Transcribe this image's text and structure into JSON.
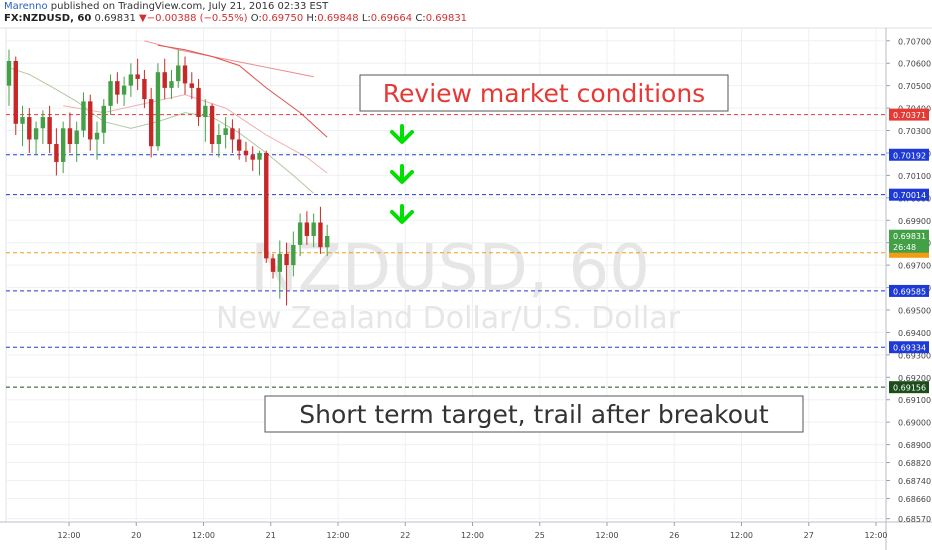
{
  "header": {
    "author": "Marenno",
    "published": " published on TradingView.com, July 21, 2016 02:33 EST",
    "symbol": "FX:NZDUSD, 60",
    "last": "0.69831",
    "change": "▼−0.00388 (−0.55%)",
    "o_label": "O:",
    "o": "0.69750",
    "h_label": "H:",
    "h": "0.69848",
    "l_label": "L:",
    "l": "0.69664",
    "c_label": "C:",
    "c": "0.69831"
  },
  "watermark": {
    "title": "NZDUSD, 60",
    "subtitle": "New Zealand Dollar/U.S. Dollar"
  },
  "annotations": [
    {
      "text": "Review market conditions",
      "color": "#e53935"
    },
    {
      "text": "Short term target, trail after breakout",
      "color": "#333333"
    }
  ],
  "colors": {
    "up": "#43a047",
    "down": "#c62828",
    "grid": "#eef0f3",
    "green_arrow": "#00e000"
  },
  "chart_data": {
    "type": "candlestick",
    "ylim": [
      0.68555,
      0.70757
    ],
    "y_ticks": [
      "0.70700",
      "0.70600",
      "0.70500",
      "0.70400",
      "0.70300",
      "0.70200",
      "0.70100",
      "0.70000",
      "0.69900",
      "0.69800",
      "0.69700",
      "0.69600",
      "0.69500",
      "0.69400",
      "0.69300",
      "0.69200",
      "0.69100",
      "0.69000",
      "0.68900",
      "0.68820",
      "0.68740",
      "0.68660",
      "0.68570"
    ],
    "x_ticks": [
      "12:00",
      "20",
      "12:00",
      "21",
      "12:00",
      "22",
      "12:00",
      "25",
      "12:00",
      "26",
      "12:00",
      "27",
      "12:00"
    ],
    "horizontal_levels": [
      {
        "label": "0.70371",
        "value": 0.70371,
        "color": "#e53935"
      },
      {
        "label": "0.70192",
        "value": 0.70192,
        "color": "#1e3ad6"
      },
      {
        "label": "0.70014",
        "value": 0.70014,
        "color": "#1e3ad6"
      },
      {
        "label": "0.69585",
        "value": 0.69585,
        "color": "#1e3ad6"
      },
      {
        "label": "0.69334",
        "value": 0.69334,
        "color": "#1e3ad6"
      },
      {
        "label": "0.69156",
        "value": 0.69156,
        "color": "#1b4d1b"
      },
      {
        "label": "",
        "value": 0.69755,
        "color": "#f39c12"
      }
    ],
    "price_labels": [
      {
        "label": "0.69831",
        "value": 0.69831,
        "color": "#43a047"
      },
      {
        "label": "26:48",
        "value": 0.69782,
        "color": "#43a047"
      }
    ],
    "candles": [
      [
        0.705,
        0.7066,
        0.7041,
        0.7061
      ],
      [
        0.7061,
        0.7063,
        0.7028,
        0.7033
      ],
      [
        0.7033,
        0.7041,
        0.7023,
        0.7036
      ],
      [
        0.7036,
        0.704,
        0.702,
        0.7026
      ],
      [
        0.7026,
        0.7034,
        0.7019,
        0.7031
      ],
      [
        0.7031,
        0.7039,
        0.7024,
        0.7036
      ],
      [
        0.7036,
        0.7041,
        0.702,
        0.7024
      ],
      [
        0.7024,
        0.7031,
        0.701,
        0.7016
      ],
      [
        0.7016,
        0.7034,
        0.7011,
        0.7031
      ],
      [
        0.7031,
        0.7038,
        0.702,
        0.7024
      ],
      [
        0.7024,
        0.7034,
        0.7016,
        0.703
      ],
      [
        0.703,
        0.7047,
        0.7027,
        0.7043
      ],
      [
        0.7043,
        0.7046,
        0.7021,
        0.7026
      ],
      [
        0.7026,
        0.7034,
        0.7017,
        0.7029
      ],
      [
        0.7029,
        0.7044,
        0.7024,
        0.7041
      ],
      [
        0.7041,
        0.7055,
        0.7037,
        0.7052
      ],
      [
        0.7052,
        0.7056,
        0.7042,
        0.7046
      ],
      [
        0.7046,
        0.7054,
        0.7041,
        0.705
      ],
      [
        0.705,
        0.706,
        0.7045,
        0.7055
      ],
      [
        0.7055,
        0.7062,
        0.7048,
        0.7053
      ],
      [
        0.7053,
        0.7057,
        0.704,
        0.7044
      ],
      [
        0.7044,
        0.7049,
        0.7018,
        0.7023
      ],
      [
        0.7023,
        0.706,
        0.7021,
        0.7056
      ],
      [
        0.7056,
        0.7062,
        0.7044,
        0.7049
      ],
      [
        0.7049,
        0.7057,
        0.7044,
        0.7052
      ],
      [
        0.7052,
        0.7066,
        0.7049,
        0.7059
      ],
      [
        0.7059,
        0.7063,
        0.7046,
        0.7051
      ],
      [
        0.7051,
        0.7056,
        0.7044,
        0.7049
      ],
      [
        0.7049,
        0.7053,
        0.7032,
        0.7036
      ],
      [
        0.7036,
        0.7044,
        0.7025,
        0.7041
      ],
      [
        0.7041,
        0.7042,
        0.702,
        0.7024
      ],
      [
        0.7024,
        0.7033,
        0.7018,
        0.7028
      ],
      [
        0.7028,
        0.7036,
        0.7022,
        0.7031
      ],
      [
        0.7031,
        0.7035,
        0.702,
        0.7026
      ],
      [
        0.7026,
        0.7031,
        0.7017,
        0.7021
      ],
      [
        0.7021,
        0.7025,
        0.7016,
        0.7019
      ],
      [
        0.7019,
        0.7023,
        0.7012,
        0.7017
      ],
      [
        0.7017,
        0.7021,
        0.701,
        0.702
      ],
      [
        0.702,
        0.7021,
        0.6971,
        0.6973
      ],
      [
        0.6973,
        0.6975,
        0.6964,
        0.6967
      ],
      [
        0.6967,
        0.6981,
        0.6955,
        0.6975
      ],
      [
        0.6975,
        0.698,
        0.6952,
        0.697
      ],
      [
        0.697,
        0.6985,
        0.6965,
        0.6979
      ],
      [
        0.6979,
        0.6993,
        0.6974,
        0.6989
      ],
      [
        0.6989,
        0.6994,
        0.6979,
        0.6983
      ],
      [
        0.6983,
        0.6993,
        0.6978,
        0.6989
      ],
      [
        0.6989,
        0.6996,
        0.6975,
        0.6978
      ],
      [
        0.6978,
        0.6988,
        0.6974,
        0.6983
      ]
    ],
    "moving_averages": [
      {
        "color": "#f08c8c",
        "values": [
          [
            20,
            0.707
          ],
          [
            25,
            0.7066
          ],
          [
            30,
            0.7063
          ],
          [
            35,
            0.706
          ],
          [
            40,
            0.7057
          ],
          [
            45,
            0.7054
          ]
        ]
      },
      {
        "color": "#e05050",
        "values": [
          [
            22,
            0.7068
          ],
          [
            26,
            0.7066
          ],
          [
            30,
            0.7063
          ],
          [
            34,
            0.7059
          ],
          [
            38,
            0.7049
          ],
          [
            43,
            0.7038
          ],
          [
            47,
            0.7027
          ]
        ]
      },
      {
        "color": "#b0c8a0",
        "values": [
          [
            0,
            0.7058
          ],
          [
            3,
            0.7055
          ],
          [
            6,
            0.705
          ],
          [
            10,
            0.7043
          ],
          [
            14,
            0.7034
          ],
          [
            18,
            0.7031
          ],
          [
            22,
            0.7034
          ],
          [
            26,
            0.7038
          ],
          [
            30,
            0.7036
          ],
          [
            34,
            0.7029
          ],
          [
            38,
            0.702
          ],
          [
            42,
            0.701
          ],
          [
            45,
            0.7002
          ]
        ]
      },
      {
        "color": "#f0b0b0",
        "values": [
          [
            8,
            0.7041
          ],
          [
            14,
            0.7038
          ],
          [
            20,
            0.7042
          ],
          [
            26,
            0.7046
          ],
          [
            32,
            0.704
          ],
          [
            38,
            0.7028
          ],
          [
            44,
            0.7018
          ],
          [
            47,
            0.7011
          ]
        ]
      }
    ]
  }
}
